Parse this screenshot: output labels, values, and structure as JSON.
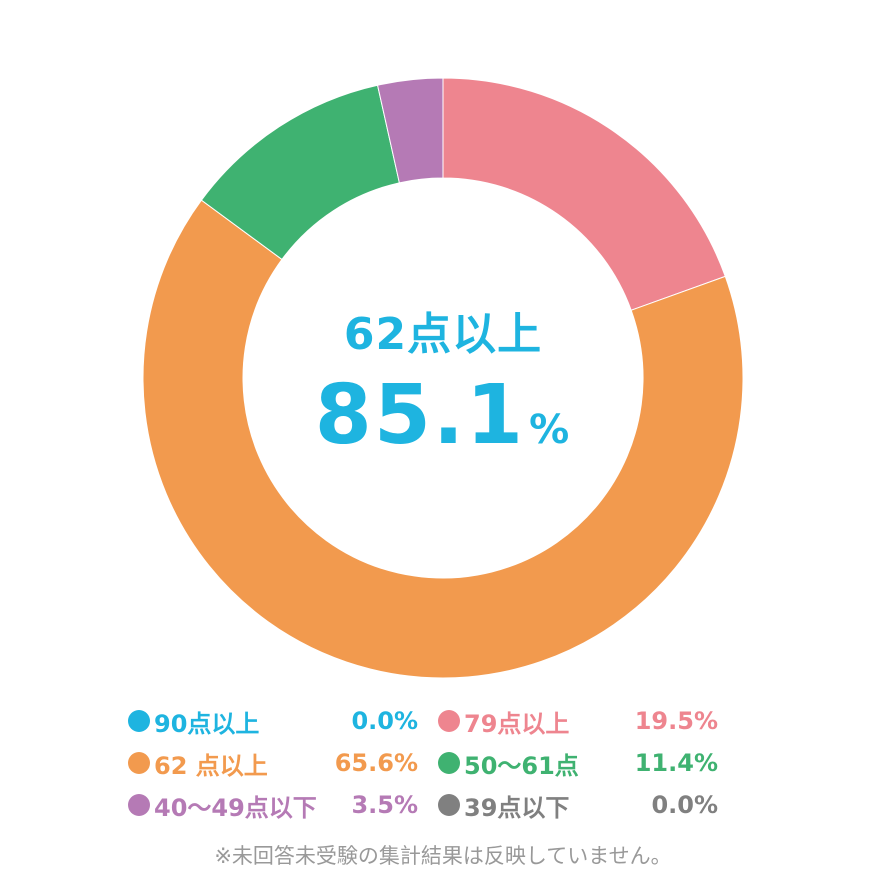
{
  "center": {
    "title": "62点以上",
    "value": "85.1",
    "unit": "%"
  },
  "chart_data": {
    "type": "pie",
    "donut": true,
    "start": "top, clockwise",
    "slices": [
      {
        "label": "90点以上",
        "value": 0.0,
        "value_text": "0.0%",
        "color": "#1eb4e0"
      },
      {
        "label": "79点以上",
        "value": 19.5,
        "value_text": "19.5%",
        "color": "#ee858f"
      },
      {
        "label": "62 点以上",
        "value": 65.6,
        "value_text": "65.6%",
        "color": "#f29a4e"
      },
      {
        "label": "50～61点",
        "value": 11.4,
        "value_text": "11.4%",
        "color": "#3fb271"
      },
      {
        "label": "40～49点以下",
        "value": 3.5,
        "value_text": "3.5%",
        "color": "#b57ab5"
      },
      {
        "label": "39点以下",
        "value": 0.0,
        "value_text": "0.0%",
        "color": "#808080"
      }
    ]
  },
  "legend": [
    [
      {
        "label": "90点以上",
        "value": "0.0%",
        "color": "#1eb4e0"
      },
      {
        "label": "79点以上",
        "value": "19.5%",
        "color": "#ee858f"
      }
    ],
    [
      {
        "label": "62 点以上",
        "value": "65.6%",
        "color": "#f29a4e"
      },
      {
        "label": "50～61点",
        "value": "11.4%",
        "color": "#3fb271"
      }
    ],
    [
      {
        "label": "40～49点以下",
        "value": "3.5%",
        "color": "#b57ab5"
      },
      {
        "label": "39点以下",
        "value": "0.0%",
        "color": "#808080"
      }
    ]
  ],
  "note": "※未回答未受験の集計結果は反映していません。"
}
